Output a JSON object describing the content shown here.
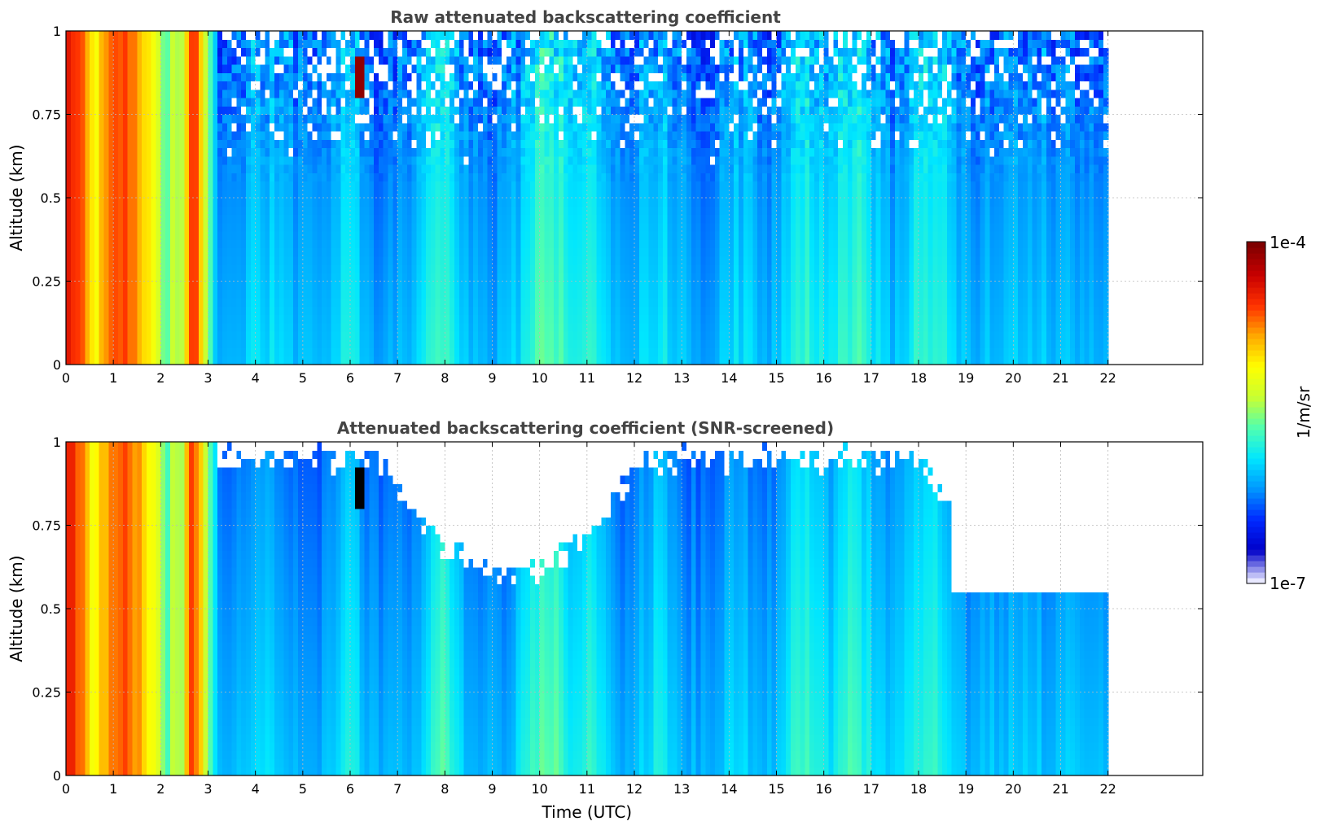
{
  "colors": {
    "colormap": [
      "#e8e8ff",
      "#0000c8",
      "#0028ff",
      "#0096ff",
      "#00e6ff",
      "#50ffb0",
      "#c8ff32",
      "#ffff00",
      "#ffaa00",
      "#ff3200",
      "#c80000",
      "#7f0000"
    ],
    "masked": "#ffffff",
    "saturated": "#000000",
    "grid": "#bbbbbb",
    "title": "#444444"
  },
  "chart_data": [
    {
      "type": "heatmap",
      "title": "Raw attenuated backscattering coefficient",
      "xlabel": "",
      "ylabel": "Altitude (km)",
      "xlim": [
        0,
        24
      ],
      "ylim": [
        0,
        1
      ],
      "xticks": [
        "0",
        "1",
        "2",
        "3",
        "4",
        "5",
        "6",
        "7",
        "8",
        "9",
        "10",
        "11",
        "12",
        "13",
        "14",
        "15",
        "16",
        "17",
        "18",
        "19",
        "20",
        "21",
        "22"
      ],
      "yticks": [
        "0",
        "0.25",
        "0.5",
        "0.75",
        "1"
      ],
      "data_extent_x": [
        0,
        22
      ],
      "grid": true,
      "screened": false
    },
    {
      "type": "heatmap",
      "title": "Attenuated backscattering coefficient (SNR-screened)",
      "xlabel": "Time (UTC)",
      "ylabel": "Altitude (km)",
      "xlim": [
        0,
        24
      ],
      "ylim": [
        0,
        1
      ],
      "xticks": [
        "0",
        "1",
        "2",
        "3",
        "4",
        "5",
        "6",
        "7",
        "8",
        "9",
        "10",
        "11",
        "12",
        "13",
        "14",
        "15",
        "16",
        "17",
        "18",
        "19",
        "20",
        "21",
        "22"
      ],
      "yticks": [
        "0",
        "0.25",
        "0.5",
        "0.75",
        "1"
      ],
      "data_extent_x": [
        0,
        22
      ],
      "grid": true,
      "screened": true
    }
  ],
  "colorbar": {
    "label": "1/m/sr",
    "max_label": "1e-4",
    "min_label": "1e-7",
    "scale": "log",
    "range": [
      1e-07,
      0.0001
    ]
  }
}
